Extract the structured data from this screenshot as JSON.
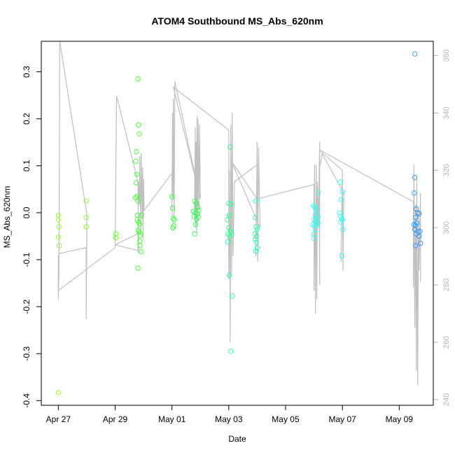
{
  "chart_data": {
    "type": "scatter",
    "title": "ATOM4 Southbound MS_Abs_620nm",
    "xlabel": "Date",
    "ylabel": "MS_Abs_620nm",
    "x_ticks": [
      {
        "value": 0,
        "label": "Apr 27"
      },
      {
        "value": 2,
        "label": "Apr 29"
      },
      {
        "value": 4,
        "label": "May 01"
      },
      {
        "value": 6,
        "label": "May 03"
      },
      {
        "value": 8,
        "label": "May 05"
      },
      {
        "value": 10,
        "label": "May 07"
      },
      {
        "value": 12,
        "label": "May 09"
      }
    ],
    "xlim": [
      -0.6,
      13.2
    ],
    "ylim": [
      -0.41,
      0.365
    ],
    "y_ticks": [
      -0.4,
      -0.3,
      -0.2,
      -0.1,
      0.0,
      0.1,
      0.2,
      0.3
    ],
    "y_tick_labels": [
      "-0.4",
      "-0.3",
      "-0.2",
      "-0.1",
      "0.0",
      "0.1",
      "0.2",
      "0.3"
    ],
    "y2_ticks": [
      240,
      260,
      280,
      300,
      320,
      340,
      360
    ],
    "y2lim": [
      238,
      365
    ],
    "y2_color": "#b4b4b4",
    "line_color": "#c0c0c0",
    "grid": false,
    "points": [
      {
        "x": 0.0,
        "y": -0.005,
        "color": "#99ff33"
      },
      {
        "x": 0.0,
        "y": -0.015,
        "color": "#99ff33"
      },
      {
        "x": 0.02,
        "y": -0.03,
        "color": "#99ff33"
      },
      {
        "x": 0.0,
        "y": -0.052,
        "color": "#99ff33"
      },
      {
        "x": 0.03,
        "y": -0.07,
        "color": "#99ff33"
      },
      {
        "x": 0.0,
        "y": -0.383,
        "color": "#99ff33"
      },
      {
        "x": 0.98,
        "y": 0.025,
        "color": "#8cff33"
      },
      {
        "x": 0.98,
        "y": -0.01,
        "color": "#8cff33"
      },
      {
        "x": 0.98,
        "y": -0.03,
        "color": "#8cff33"
      },
      {
        "x": 2.02,
        "y": -0.045,
        "color": "#66ff33"
      },
      {
        "x": 2.02,
        "y": -0.053,
        "color": "#66ff33"
      },
      {
        "x": 2.8,
        "y": 0.285,
        "color": "#44ff33"
      },
      {
        "x": 2.82,
        "y": 0.187,
        "color": "#44ff33"
      },
      {
        "x": 2.85,
        "y": 0.168,
        "color": "#44ff33"
      },
      {
        "x": 2.75,
        "y": 0.13,
        "color": "#44ff33"
      },
      {
        "x": 2.73,
        "y": 0.11,
        "color": "#44ff33"
      },
      {
        "x": 2.76,
        "y": 0.082,
        "color": "#44ff33"
      },
      {
        "x": 2.74,
        "y": 0.064,
        "color": "#44ff33"
      },
      {
        "x": 2.78,
        "y": 0.035,
        "color": "#44ff33"
      },
      {
        "x": 2.72,
        "y": 0.032,
        "color": "#44ff33"
      },
      {
        "x": 2.8,
        "y": 0.025,
        "color": "#44ff33"
      },
      {
        "x": 2.79,
        "y": -0.005,
        "color": "#44ff33"
      },
      {
        "x": 2.93,
        "y": -0.005,
        "color": "#44ff33"
      },
      {
        "x": 2.78,
        "y": -0.015,
        "color": "#44ff33"
      },
      {
        "x": 2.82,
        "y": -0.02,
        "color": "#44ff33"
      },
      {
        "x": 2.86,
        "y": -0.025,
        "color": "#44ff33"
      },
      {
        "x": 2.81,
        "y": -0.038,
        "color": "#44ff33"
      },
      {
        "x": 2.85,
        "y": -0.042,
        "color": "#44ff33"
      },
      {
        "x": 2.88,
        "y": -0.048,
        "color": "#44ff33"
      },
      {
        "x": 2.87,
        "y": -0.06,
        "color": "#44ff33"
      },
      {
        "x": 2.88,
        "y": -0.07,
        "color": "#44ff33"
      },
      {
        "x": 2.92,
        "y": -0.083,
        "color": "#44ff33"
      },
      {
        "x": 2.8,
        "y": -0.118,
        "color": "#44ff33"
      },
      {
        "x": 4.0,
        "y": 0.034,
        "color": "#33ff40"
      },
      {
        "x": 4.02,
        "y": 0.01,
        "color": "#33ff40"
      },
      {
        "x": 4.05,
        "y": -0.012,
        "color": "#33ff40"
      },
      {
        "x": 4.08,
        "y": -0.015,
        "color": "#33ff40"
      },
      {
        "x": 4.06,
        "y": -0.028,
        "color": "#33ff40"
      },
      {
        "x": 4.03,
        "y": -0.032,
        "color": "#33ff40"
      },
      {
        "x": 4.75,
        "y": 0.003,
        "color": "#33ff55"
      },
      {
        "x": 4.8,
        "y": 0.025,
        "color": "#33ff55"
      },
      {
        "x": 4.85,
        "y": 0.02,
        "color": "#33ff55"
      },
      {
        "x": 4.9,
        "y": 0.012,
        "color": "#33ff55"
      },
      {
        "x": 4.82,
        "y": 0.0,
        "color": "#33ff55"
      },
      {
        "x": 4.88,
        "y": -0.003,
        "color": "#33ff55"
      },
      {
        "x": 4.95,
        "y": 0.005,
        "color": "#33ff55"
      },
      {
        "x": 4.78,
        "y": -0.008,
        "color": "#33ff55"
      },
      {
        "x": 4.92,
        "y": -0.01,
        "color": "#33ff55"
      },
      {
        "x": 4.86,
        "y": -0.014,
        "color": "#33ff55"
      },
      {
        "x": 4.83,
        "y": -0.025,
        "color": "#33ff55"
      },
      {
        "x": 4.8,
        "y": -0.045,
        "color": "#33ff55"
      },
      {
        "x": 6.05,
        "y": 0.14,
        "color": "#33ff99"
      },
      {
        "x": 6.0,
        "y": 0.02,
        "color": "#33ff99"
      },
      {
        "x": 6.08,
        "y": 0.018,
        "color": "#33ff99"
      },
      {
        "x": 5.95,
        "y": -0.015,
        "color": "#33ff99"
      },
      {
        "x": 6.02,
        "y": -0.005,
        "color": "#33ff99"
      },
      {
        "x": 6.0,
        "y": -0.032,
        "color": "#33ff99"
      },
      {
        "x": 6.06,
        "y": -0.04,
        "color": "#33ff99"
      },
      {
        "x": 5.97,
        "y": -0.045,
        "color": "#33ff99"
      },
      {
        "x": 6.1,
        "y": -0.045,
        "color": "#33ff99"
      },
      {
        "x": 6.03,
        "y": -0.05,
        "color": "#33ff99"
      },
      {
        "x": 5.96,
        "y": -0.062,
        "color": "#33ff99"
      },
      {
        "x": 6.02,
        "y": -0.133,
        "color": "#33ff99"
      },
      {
        "x": 6.12,
        "y": -0.178,
        "color": "#33ff99"
      },
      {
        "x": 6.07,
        "y": -0.295,
        "color": "#33ff99"
      },
      {
        "x": 6.95,
        "y": 0.025,
        "color": "#33ffaa"
      },
      {
        "x": 6.93,
        "y": -0.01,
        "color": "#33ffaa"
      },
      {
        "x": 6.96,
        "y": -0.03,
        "color": "#33ffaa"
      },
      {
        "x": 7.0,
        "y": -0.035,
        "color": "#33ffaa"
      },
      {
        "x": 6.92,
        "y": -0.045,
        "color": "#33ffaa"
      },
      {
        "x": 6.98,
        "y": -0.05,
        "color": "#33ffaa"
      },
      {
        "x": 6.94,
        "y": -0.057,
        "color": "#33ffaa"
      },
      {
        "x": 6.97,
        "y": -0.063,
        "color": "#33ffaa"
      },
      {
        "x": 7.0,
        "y": -0.075,
        "color": "#33ffaa"
      },
      {
        "x": 6.95,
        "y": -0.082,
        "color": "#33ffaa"
      },
      {
        "x": 8.98,
        "y": 0.015,
        "color": "#33ffee"
      },
      {
        "x": 9.02,
        "y": 0.012,
        "color": "#33ffee"
      },
      {
        "x": 9.08,
        "y": 0.005,
        "color": "#33ffee"
      },
      {
        "x": 9.04,
        "y": -0.005,
        "color": "#33ffee"
      },
      {
        "x": 9.12,
        "y": -0.008,
        "color": "#33ffee"
      },
      {
        "x": 9.0,
        "y": -0.015,
        "color": "#33ffee"
      },
      {
        "x": 9.06,
        "y": -0.018,
        "color": "#33ffee"
      },
      {
        "x": 9.1,
        "y": -0.022,
        "color": "#33ffee"
      },
      {
        "x": 9.14,
        "y": -0.02,
        "color": "#33ffee"
      },
      {
        "x": 8.97,
        "y": -0.025,
        "color": "#33ffee"
      },
      {
        "x": 9.03,
        "y": -0.028,
        "color": "#33ffee"
      },
      {
        "x": 9.05,
        "y": -0.035,
        "color": "#33ffee"
      },
      {
        "x": 9.0,
        "y": -0.045,
        "color": "#33ffee"
      },
      {
        "x": 8.99,
        "y": -0.055,
        "color": "#33ffee"
      },
      {
        "x": 9.15,
        "y": 0.043,
        "color": "#33ffee"
      },
      {
        "x": 9.92,
        "y": 0.065,
        "color": "#33ffff"
      },
      {
        "x": 10.0,
        "y": 0.045,
        "color": "#33ffff"
      },
      {
        "x": 9.95,
        "y": 0.028,
        "color": "#33ffff"
      },
      {
        "x": 9.9,
        "y": 0.0,
        "color": "#33ffff"
      },
      {
        "x": 9.93,
        "y": -0.008,
        "color": "#33ffff"
      },
      {
        "x": 9.97,
        "y": -0.012,
        "color": "#33ffff"
      },
      {
        "x": 10.0,
        "y": -0.015,
        "color": "#33ffff"
      },
      {
        "x": 9.94,
        "y": -0.02,
        "color": "#33ffff"
      },
      {
        "x": 10.02,
        "y": -0.035,
        "color": "#33ffff"
      },
      {
        "x": 9.98,
        "y": -0.092,
        "color": "#33ffff"
      },
      {
        "x": 12.55,
        "y": 0.338,
        "color": "#33aaff"
      },
      {
        "x": 12.55,
        "y": 0.075,
        "color": "#33aaff"
      },
      {
        "x": 12.53,
        "y": 0.042,
        "color": "#33aaff"
      },
      {
        "x": 12.6,
        "y": 0.008,
        "color": "#3399ff"
      },
      {
        "x": 12.65,
        "y": 0.0,
        "color": "#3399ff"
      },
      {
        "x": 12.7,
        "y": -0.002,
        "color": "#3399ff"
      },
      {
        "x": 12.58,
        "y": -0.01,
        "color": "#3399ff"
      },
      {
        "x": 12.62,
        "y": -0.022,
        "color": "#3399ff"
      },
      {
        "x": 12.52,
        "y": -0.025,
        "color": "#3399ff"
      },
      {
        "x": 12.57,
        "y": -0.027,
        "color": "#3399ff"
      },
      {
        "x": 12.55,
        "y": -0.035,
        "color": "#3399ff"
      },
      {
        "x": 12.66,
        "y": -0.04,
        "color": "#3399ff"
      },
      {
        "x": 12.73,
        "y": -0.04,
        "color": "#3399ff"
      },
      {
        "x": 12.6,
        "y": -0.045,
        "color": "#3399ff"
      },
      {
        "x": 12.7,
        "y": -0.05,
        "color": "#3399ff"
      },
      {
        "x": 12.75,
        "y": -0.065,
        "color": "#3399ff"
      },
      {
        "x": 12.58,
        "y": -0.07,
        "color": "#3399ff"
      }
    ],
    "line_series": [
      [
        0.0,
        275
      ],
      [
        0.02,
        283
      ],
      [
        0.05,
        365
      ],
      [
        1.0,
        305
      ],
      [
        1.0,
        293
      ],
      [
        0.98,
        268
      ],
      [
        0.98,
        293
      ],
      [
        0.05,
        291
      ],
      [
        0.0,
        290
      ],
      [
        0.0,
        278
      ],
      [
        2.0,
        293
      ],
      [
        2.05,
        346
      ],
      [
        2.8,
        316
      ],
      [
        2.82,
        291
      ],
      [
        2.82,
        298
      ],
      [
        2.0,
        294
      ],
      [
        2.8,
        292
      ],
      [
        2.82,
        316
      ],
      [
        2.85,
        308
      ],
      [
        2.87,
        325
      ],
      [
        2.9,
        298
      ],
      [
        2.92,
        326
      ],
      [
        2.95,
        303
      ],
      [
        2.97,
        321
      ],
      [
        2.98,
        296
      ],
      [
        3.0,
        317
      ],
      [
        3.02,
        306
      ],
      [
        4.0,
        319
      ],
      [
        4.0,
        304
      ],
      [
        4.02,
        340
      ],
      [
        4.04,
        310
      ],
      [
        4.05,
        345
      ],
      [
        4.08,
        303
      ],
      [
        4.1,
        351
      ],
      [
        4.8,
        319
      ],
      [
        4.8,
        303
      ],
      [
        4.82,
        335
      ],
      [
        4.83,
        300
      ],
      [
        4.85,
        330
      ],
      [
        4.87,
        298
      ],
      [
        4.88,
        339
      ],
      [
        4.9,
        302
      ],
      [
        4.92,
        338
      ],
      [
        4.95,
        304
      ],
      [
        4.97,
        336
      ],
      [
        5.0,
        310
      ],
      [
        4.05,
        349
      ],
      [
        6.0,
        334
      ],
      [
        6.0,
        282
      ],
      [
        6.02,
        320
      ],
      [
        6.05,
        260
      ],
      [
        6.07,
        336
      ],
      [
        6.1,
        284
      ],
      [
        6.12,
        340
      ],
      [
        6.15,
        290
      ],
      [
        6.2,
        316
      ],
      [
        7.0,
        322
      ],
      [
        6.95,
        290
      ],
      [
        7.0,
        330
      ],
      [
        7.02,
        288
      ],
      [
        7.05,
        328
      ],
      [
        7.1,
        300
      ],
      [
        6.1,
        323
      ],
      [
        7.0,
        310
      ],
      [
        9.0,
        315
      ],
      [
        9.0,
        278
      ],
      [
        9.02,
        322
      ],
      [
        9.05,
        270
      ],
      [
        9.08,
        322
      ],
      [
        9.1,
        275
      ],
      [
        9.12,
        316
      ],
      [
        9.15,
        300
      ],
      [
        9.2,
        330
      ],
      [
        9.2,
        280
      ],
      [
        9.18,
        320
      ],
      [
        9.3,
        326
      ],
      [
        10.0,
        320
      ],
      [
        9.95,
        288
      ],
      [
        10.0,
        318
      ],
      [
        10.02,
        285
      ],
      [
        10.05,
        312
      ],
      [
        9.22,
        327
      ],
      [
        12.5,
        309
      ],
      [
        12.5,
        279
      ],
      [
        12.52,
        322
      ],
      [
        12.55,
        265
      ],
      [
        12.58,
        308
      ],
      [
        12.6,
        250
      ],
      [
        12.62,
        318
      ],
      [
        12.65,
        245
      ],
      [
        12.68,
        306
      ],
      [
        12.7,
        285
      ],
      [
        12.75,
        312
      ],
      [
        12.75,
        281
      ]
    ]
  }
}
